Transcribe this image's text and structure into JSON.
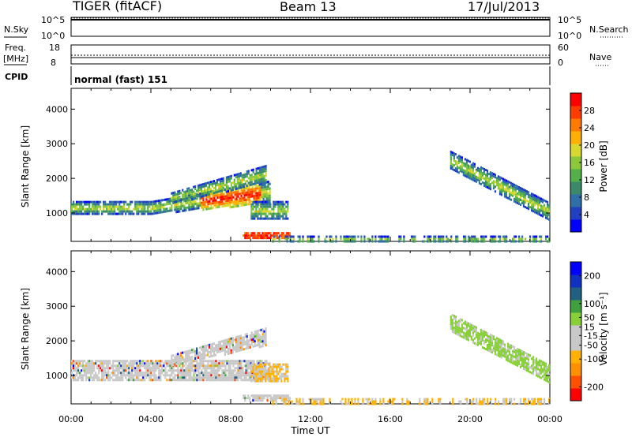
{
  "header": {
    "radar": "TIGER (fitACF)",
    "beam": "Beam 13",
    "date": "17/Jul/2013"
  },
  "top_panels": {
    "nsky_label": "N.Sky",
    "nsky_ticks": [
      "10^5",
      "10^0"
    ],
    "nsearch_label": "N.Search",
    "freq_label": "Freq.",
    "freq_unit": "[MHz]",
    "freq_ticks": [
      "18",
      "8"
    ],
    "nave_label": "Nave",
    "nave_ticks": [
      "60",
      "0"
    ],
    "cpid_label": "CPID",
    "cpid_value": "normal (fast) 151"
  },
  "colors": {
    "power": [
      "#0000ff",
      "#2040c0",
      "#2f6fa8",
      "#3a8a6a",
      "#54b04a",
      "#8cc83c",
      "#d8d830",
      "#ffb000",
      "#ff7a00",
      "#ff3c00",
      "#ff0000"
    ],
    "velocity": [
      "#ff0000",
      "#ff5000",
      "#ff9000",
      "#ffb000",
      "#c8c8c8",
      "#c8c8c8",
      "#88d038",
      "#40a040",
      "#206080",
      "#1030c0",
      "#0000ff"
    ]
  },
  "chart_data": [
    {
      "type": "heatmap",
      "name": "power",
      "ylabel": "Slant Range [km]",
      "yticks": [
        1000,
        2000,
        3000,
        4000
      ],
      "ylim": [
        180,
        4600
      ],
      "colorbar": {
        "label": "Power [dB]",
        "ticks": [
          4,
          8,
          12,
          16,
          20,
          24,
          28
        ],
        "range": [
          0,
          32
        ]
      },
      "echo_regions": [
        {
          "t_start": 0.0,
          "t_end": 10.0,
          "r_start": 1000,
          "r_end": 1350,
          "peak_start_h": 6.5,
          "peak_end_h": 9.5
        },
        {
          "t_start": 5.0,
          "t_end": 9.8,
          "r_start": 1400,
          "r_end": 2300
        },
        {
          "t_start": 8.6,
          "t_end": 11.0,
          "r_start": 300,
          "r_end": 450
        },
        {
          "t_start": 9.0,
          "t_end": 10.9,
          "r_start": 850,
          "r_end": 1350
        },
        {
          "t_start": 19.0,
          "t_end": 24.0,
          "r_start": 1000,
          "r_end": 2800
        },
        {
          "t_start": 10.0,
          "t_end": 24.0,
          "r_start": 180,
          "r_end": 350
        }
      ]
    },
    {
      "type": "heatmap",
      "name": "velocity",
      "xlabel": "Time UT",
      "ylabel": "Slant Range [km]",
      "xticks": [
        "00:00",
        "04:00",
        "08:00",
        "12:00",
        "16:00",
        "20:00",
        "00:00"
      ],
      "xlim_hours": [
        0,
        24
      ],
      "yticks": [
        1000,
        2000,
        3000,
        4000
      ],
      "ylim": [
        180,
        4600
      ],
      "colorbar": {
        "label": "Velocity [m s⁻¹]",
        "ticks": [
          200,
          100,
          50,
          15,
          -15,
          -50,
          -100,
          -200
        ],
        "range": [
          -250,
          250
        ]
      },
      "echo_regions": [
        {
          "t_start": 0.0,
          "t_end": 10.0,
          "r_start": 900,
          "r_end": 1450
        },
        {
          "t_start": 5.0,
          "t_end": 9.8,
          "r_start": 1400,
          "r_end": 2300
        },
        {
          "t_start": 9.0,
          "t_end": 10.9,
          "r_start": 850,
          "r_end": 1350
        },
        {
          "t_start": 8.6,
          "t_end": 11.0,
          "r_start": 250,
          "r_end": 450
        },
        {
          "t_start": 19.0,
          "t_end": 24.0,
          "r_start": 800,
          "r_end": 2800
        },
        {
          "t_start": 10.0,
          "t_end": 24.0,
          "r_start": 180,
          "r_end": 350
        }
      ]
    }
  ]
}
